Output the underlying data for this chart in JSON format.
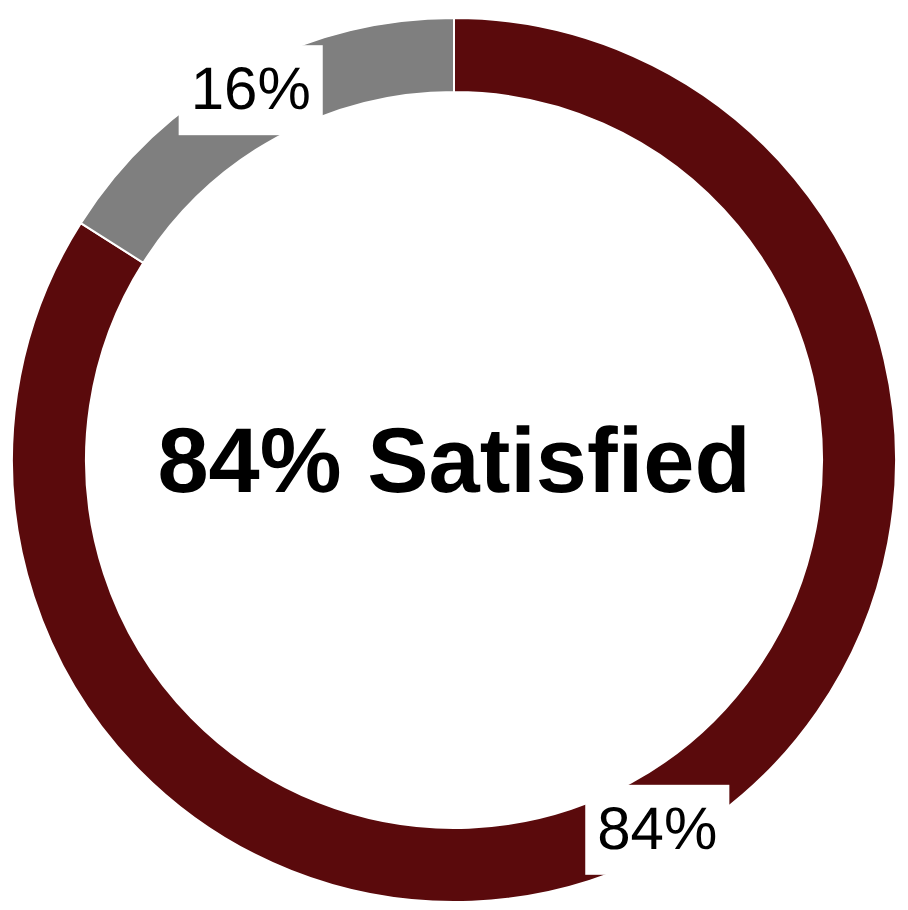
{
  "chart_data": {
    "type": "donut",
    "categories": [
      null,
      null
    ],
    "values": [
      84,
      16
    ],
    "colors": [
      "#5a0a0c",
      "#7f7f7f"
    ],
    "value_labels": [
      "84%",
      "16%"
    ],
    "annotations": [
      "84% Satisfied"
    ]
  }
}
